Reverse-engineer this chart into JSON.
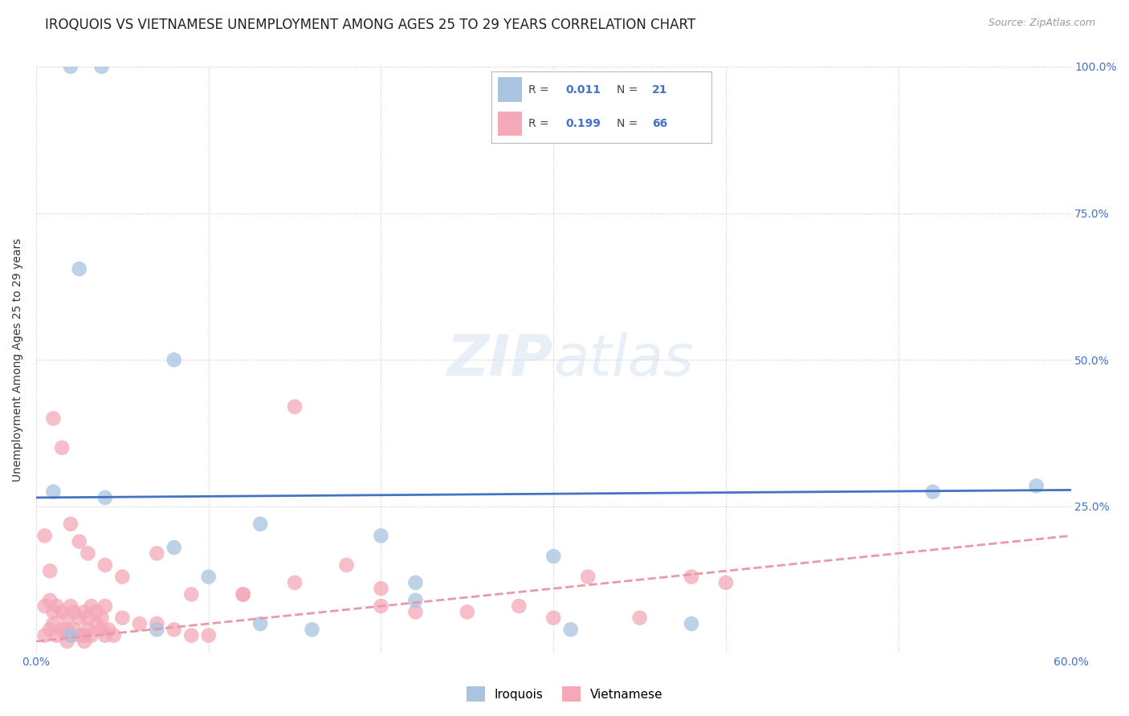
{
  "title": "IROQUOIS VS VIETNAMESE UNEMPLOYMENT AMONG AGES 25 TO 29 YEARS CORRELATION CHART",
  "source": "Source: ZipAtlas.com",
  "ylabel": "Unemployment Among Ages 25 to 29 years",
  "xlim": [
    0.0,
    0.6
  ],
  "ylim": [
    0.0,
    1.0
  ],
  "xticks": [
    0.0,
    0.1,
    0.2,
    0.3,
    0.4,
    0.5,
    0.6
  ],
  "yticks": [
    0.0,
    0.25,
    0.5,
    0.75,
    1.0
  ],
  "ytick_labels": [
    "",
    "25.0%",
    "50.0%",
    "75.0%",
    "100.0%"
  ],
  "xtick_labels": [
    "0.0%",
    "",
    "",
    "",
    "",
    "",
    "60.0%"
  ],
  "iroquois_color": "#a8c4e0",
  "vietnamese_color": "#f4a8b8",
  "iroquois_line_color": "#4472c4",
  "vietnamese_line_color": "#e899aa",
  "iroquois_R": "0.011",
  "iroquois_N": "21",
  "vietnamese_R": "0.199",
  "vietnamese_N": "66",
  "legend_label_iroquois": "Iroquois",
  "legend_label_vietnamese": "Vietnamese",
  "iroquois_scatter_x": [
    0.02,
    0.038,
    0.01,
    0.04,
    0.025,
    0.08,
    0.13,
    0.52,
    0.58,
    0.02,
    0.07,
    0.13,
    0.2,
    0.08,
    0.16,
    0.22,
    0.31,
    0.38,
    0.22,
    0.1,
    0.3
  ],
  "iroquois_scatter_y": [
    1.0,
    1.0,
    0.275,
    0.265,
    0.655,
    0.5,
    0.22,
    0.275,
    0.285,
    0.03,
    0.04,
    0.05,
    0.2,
    0.18,
    0.04,
    0.12,
    0.04,
    0.05,
    0.09,
    0.13,
    0.165
  ],
  "vietnamese_scatter_x": [
    0.005,
    0.008,
    0.01,
    0.012,
    0.015,
    0.018,
    0.02,
    0.022,
    0.025,
    0.028,
    0.03,
    0.032,
    0.035,
    0.038,
    0.04,
    0.042,
    0.045,
    0.005,
    0.008,
    0.01,
    0.012,
    0.015,
    0.018,
    0.02,
    0.022,
    0.025,
    0.028,
    0.03,
    0.032,
    0.035,
    0.038,
    0.04,
    0.05,
    0.06,
    0.07,
    0.08,
    0.09,
    0.1,
    0.12,
    0.15,
    0.18,
    0.2,
    0.25,
    0.28,
    0.3,
    0.32,
    0.35,
    0.38,
    0.4,
    0.005,
    0.01,
    0.015,
    0.02,
    0.025,
    0.03,
    0.04,
    0.05,
    0.07,
    0.09,
    0.12,
    0.15,
    0.2,
    0.22,
    0.008,
    0.018,
    0.028
  ],
  "vietnamese_scatter_y": [
    0.03,
    0.04,
    0.05,
    0.03,
    0.04,
    0.02,
    0.03,
    0.04,
    0.03,
    0.02,
    0.04,
    0.03,
    0.05,
    0.04,
    0.03,
    0.04,
    0.03,
    0.08,
    0.09,
    0.07,
    0.08,
    0.07,
    0.06,
    0.08,
    0.07,
    0.06,
    0.07,
    0.06,
    0.08,
    0.07,
    0.06,
    0.08,
    0.06,
    0.05,
    0.05,
    0.04,
    0.03,
    0.03,
    0.1,
    0.12,
    0.15,
    0.11,
    0.07,
    0.08,
    0.06,
    0.13,
    0.06,
    0.13,
    0.12,
    0.2,
    0.4,
    0.35,
    0.22,
    0.19,
    0.17,
    0.15,
    0.13,
    0.17,
    0.1,
    0.1,
    0.42,
    0.08,
    0.07,
    0.14,
    0.04,
    0.03
  ],
  "irq_trend_x": [
    0.0,
    0.6
  ],
  "irq_trend_y": [
    0.265,
    0.278
  ],
  "vie_trend_x": [
    0.0,
    0.6
  ],
  "vie_trend_y": [
    0.02,
    0.2
  ],
  "bg_color": "#ffffff",
  "grid_color": "#c8c8c8",
  "title_fontsize": 12,
  "axis_label_fontsize": 10,
  "tick_fontsize": 10
}
